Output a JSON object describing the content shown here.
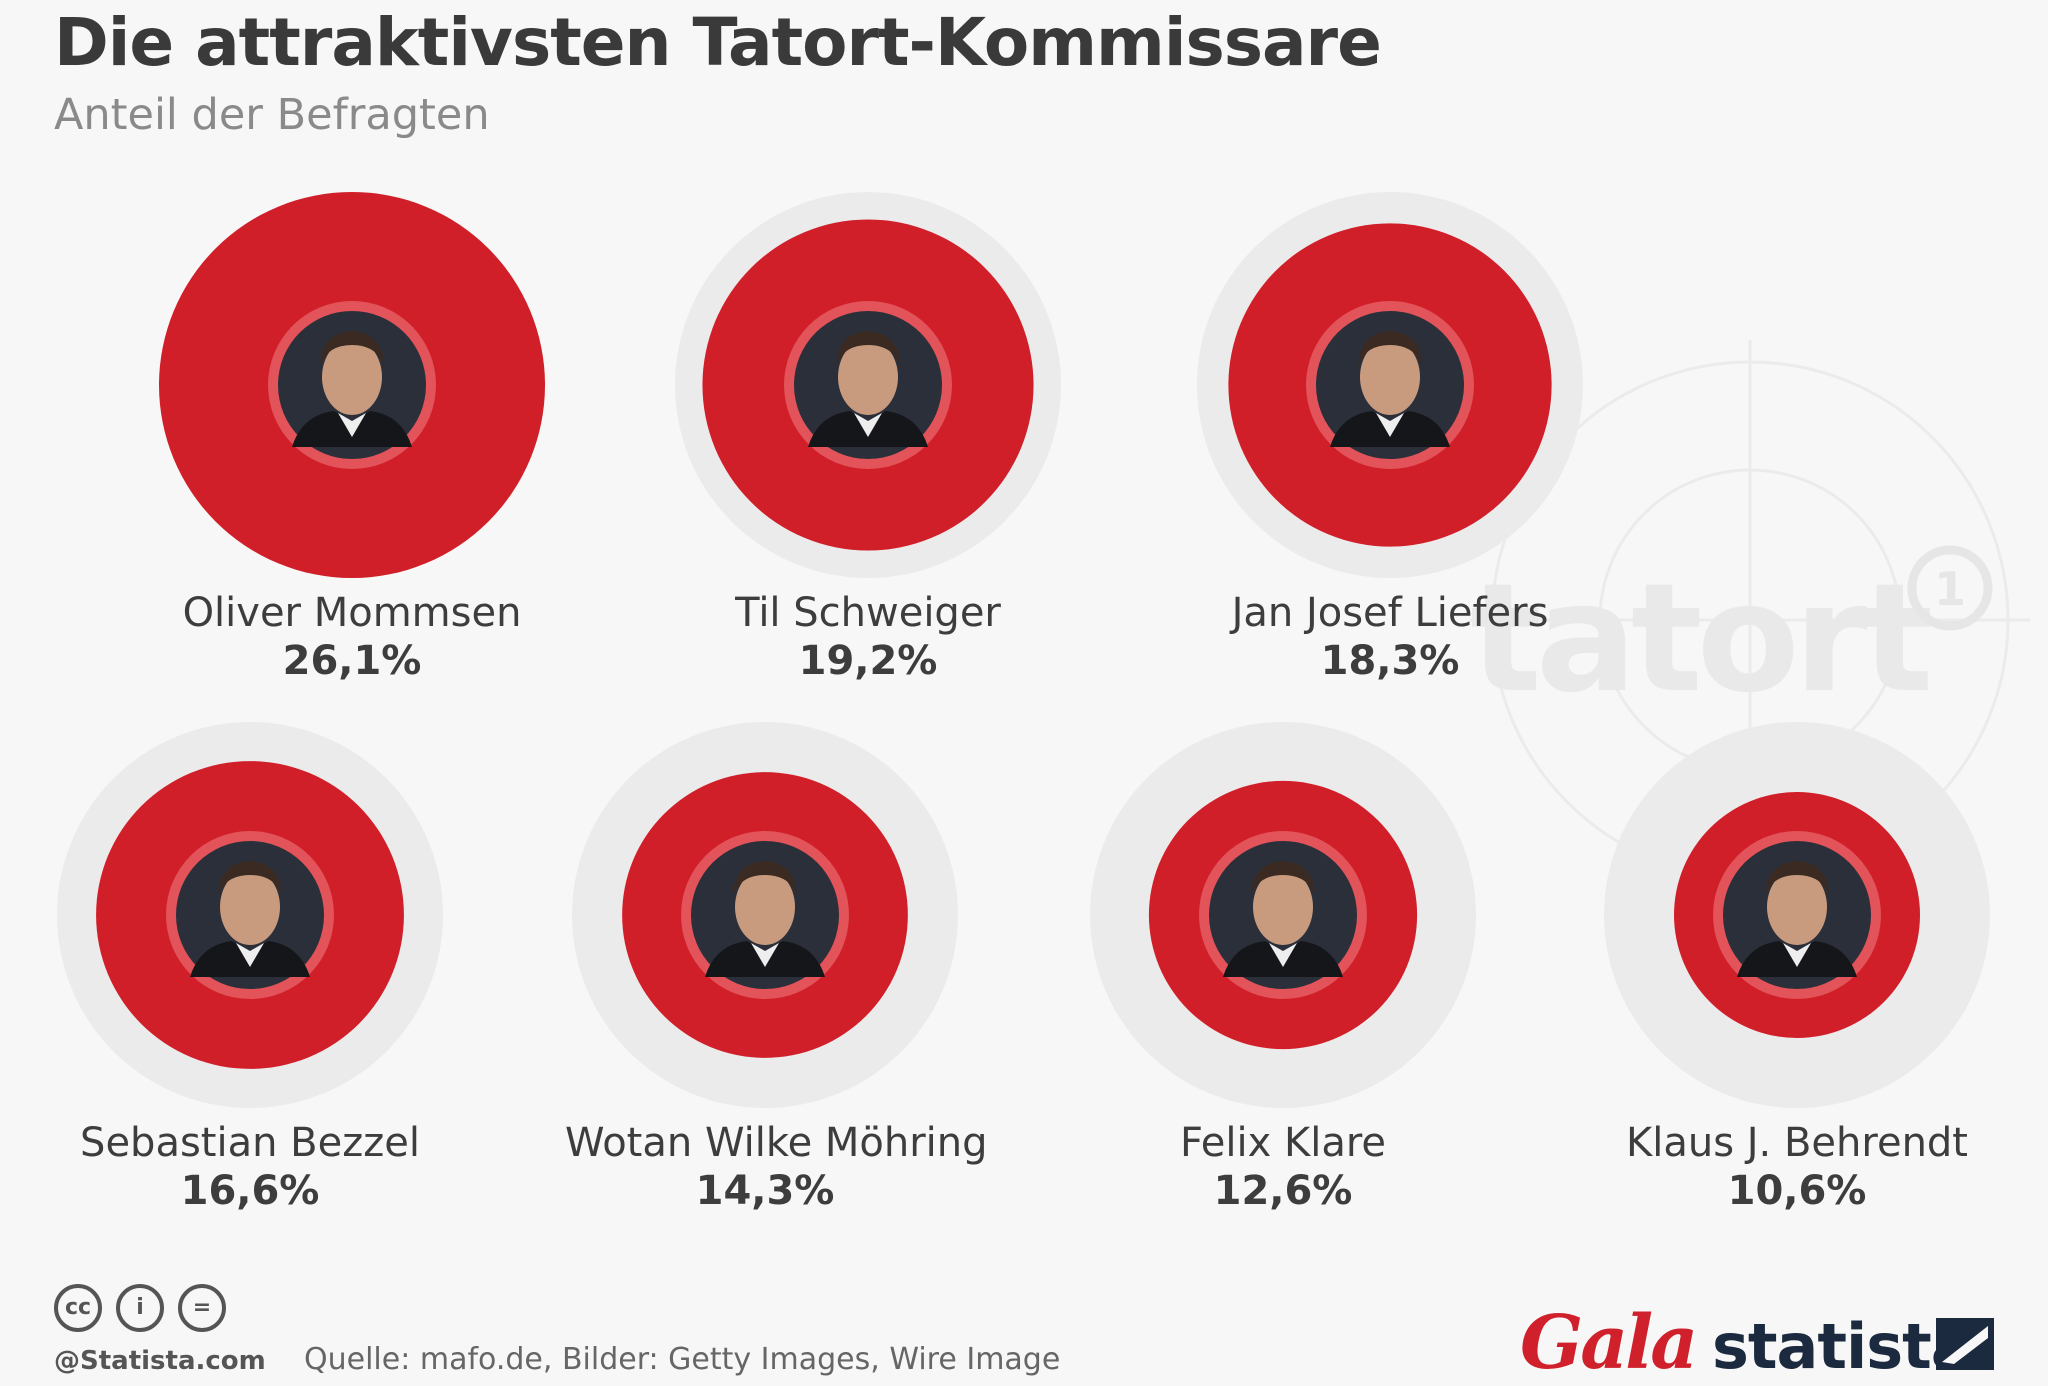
{
  "title": "Die attraktivsten Tatort-Kommissare",
  "subtitle": "Anteil der Befragten",
  "colors": {
    "bubble": "#d11f2a",
    "bubble_inner_ring": "#e2535a",
    "track": "#ebebeb",
    "text": "#3d3d3d"
  },
  "chart_data": {
    "type": "bubble",
    "title": "Die attraktivsten Tatort-Kommissare",
    "subtitle": "Anteil der Befragten",
    "max_value": 26.1,
    "items": [
      {
        "name": "Oliver Mommsen",
        "value": 26.1,
        "label": "26,1%",
        "image": "portrait-photo"
      },
      {
        "name": "Til Schweiger",
        "value": 19.2,
        "label": "19,2%",
        "image": "portrait-photo"
      },
      {
        "name": "Jan Josef Liefers",
        "value": 18.3,
        "label": "18,3%",
        "image": "portrait-photo"
      },
      {
        "name": "Sebastian Bezzel",
        "value": 16.6,
        "label": "16,6%",
        "image": "portrait-photo"
      },
      {
        "name": "Wotan Wilke Möhring",
        "value": 14.3,
        "label": "14,3%",
        "image": "portrait-photo"
      },
      {
        "name": "Felix Klare",
        "value": 12.6,
        "label": "12,6%",
        "image": "portrait-photo"
      },
      {
        "name": "Klaus J. Behrendt",
        "value": 10.6,
        "label": "10,6%",
        "image": "portrait-photo"
      }
    ]
  },
  "watermark": {
    "text": "tatort",
    "icon": "das-erste-logo-icon"
  },
  "footer": {
    "license_icons": [
      "cc-icon",
      "by-icon",
      "nd-icon"
    ],
    "cc_text": "cc",
    "by_text": "i",
    "nd_text": "=",
    "copyright": "@Statista.com",
    "source": "Quelle: mafo.de, Bilder: Getty Images, Wire Image",
    "logo_gala": "Gala",
    "logo_statista": "statista"
  }
}
